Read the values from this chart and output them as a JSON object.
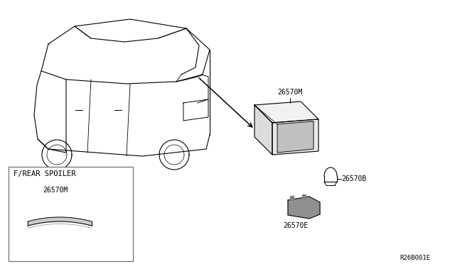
{
  "bg_color": "#ffffff",
  "title_code": "R26B001E",
  "box_label": "F/REAR SPOILER",
  "parts": [
    {
      "id": "26570M",
      "label": "26570M",
      "role": "lamp_housing"
    },
    {
      "id": "26570B",
      "label": "26570B",
      "role": "bulb"
    },
    {
      "id": "26570E",
      "label": "26570E",
      "role": "socket"
    }
  ],
  "line_color": "#000000",
  "text_color": "#000000",
  "font_size": 7,
  "box_line_color": "#555555"
}
